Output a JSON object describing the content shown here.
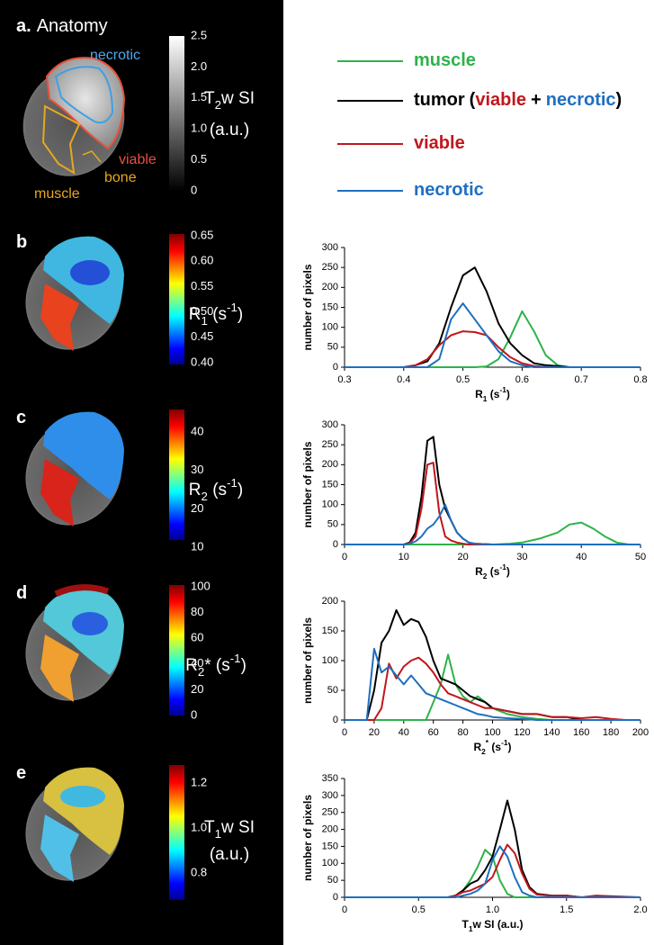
{
  "panels": [
    {
      "letter": "a.",
      "title": "Anatomy",
      "ticks": [
        "2.5",
        "2.0",
        "1.5",
        "1.0",
        "0.5",
        "0"
      ],
      "label": [
        [
          {
            "t": "T"
          },
          {
            "t": "2",
            "s": "sub"
          },
          {
            "t": "w SI"
          }
        ],
        [
          {
            "t": "(a.u.)"
          }
        ]
      ],
      "annotations": [
        "necrotic",
        "viable",
        "muscle",
        "bone"
      ]
    },
    {
      "letter": "b",
      "ticks": [
        "0.65",
        "0.60",
        "0.55",
        "0.50",
        "0.45",
        "0.40"
      ],
      "label": [
        [
          {
            "t": "R"
          },
          {
            "t": "1",
            "s": "sub"
          },
          {
            "t": " (s"
          },
          {
            "t": "-1",
            "s": "sup"
          },
          {
            "t": ")"
          }
        ]
      ]
    },
    {
      "letter": "c",
      "ticks": [
        "40",
        "30",
        "20",
        "10"
      ],
      "label": [
        [
          {
            "t": "R"
          },
          {
            "t": "2",
            "s": "sub"
          },
          {
            "t": " (s"
          },
          {
            "t": "-1",
            "s": "sup"
          },
          {
            "t": ")"
          }
        ]
      ]
    },
    {
      "letter": "d",
      "ticks": [
        "100",
        "80",
        "60",
        "40",
        "20",
        "0"
      ],
      "label": [
        [
          {
            "t": "R"
          },
          {
            "t": "2",
            "s": "sub"
          },
          {
            "t": "* (s"
          },
          {
            "t": "-1",
            "s": "sup"
          },
          {
            "t": ")"
          }
        ]
      ]
    },
    {
      "letter": "e",
      "ticks": [
        "1.2",
        "1.0",
        "0.8"
      ],
      "label": [
        [
          {
            "t": "T"
          },
          {
            "t": "1",
            "s": "sub"
          },
          {
            "t": "w SI"
          }
        ],
        [
          {
            "t": "(a.u.)"
          }
        ]
      ]
    }
  ],
  "legend_note": [
    "(",
    "viable",
    "+",
    "necrotic",
    ")"
  ],
  "chart_data": [
    {
      "type": "line",
      "ylabel": "number of pixels",
      "xlabel": [
        {
          "t": "R"
        },
        {
          "t": "1",
          "s": "sub"
        },
        {
          "t": " (s"
        },
        {
          "t": "-1",
          "s": "sup"
        },
        {
          "t": ")"
        }
      ],
      "x": [
        0.3,
        0.4,
        0.42,
        0.44,
        0.46,
        0.48,
        0.5,
        0.52,
        0.54,
        0.56,
        0.58,
        0.6,
        0.62,
        0.64,
        0.66,
        0.68,
        0.7,
        0.8
      ],
      "series": [
        {
          "name": "muscle",
          "color": "#2db34a",
          "values": [
            0,
            0,
            0,
            0,
            0,
            0,
            0,
            0,
            2,
            20,
            75,
            140,
            90,
            30,
            5,
            0,
            0,
            0
          ]
        },
        {
          "name": "tumor",
          "color": "#000000",
          "values": [
            0,
            0,
            5,
            15,
            60,
            150,
            230,
            250,
            190,
            110,
            60,
            30,
            10,
            5,
            3,
            0,
            0,
            0
          ]
        },
        {
          "name": "viable",
          "color": "#c0171d",
          "values": [
            0,
            0,
            5,
            20,
            55,
            80,
            90,
            88,
            80,
            50,
            25,
            10,
            3,
            1,
            0,
            0,
            0,
            0
          ]
        },
        {
          "name": "necrotic",
          "color": "#1f6fc0",
          "values": [
            0,
            0,
            0,
            0,
            20,
            120,
            160,
            120,
            80,
            40,
            15,
            5,
            0,
            0,
            0,
            0,
            0,
            0
          ]
        }
      ],
      "xlim": [
        0.3,
        0.8
      ],
      "xticks": [
        0.3,
        0.4,
        0.5,
        0.6,
        0.7,
        0.8
      ],
      "ylim": [
        0,
        300
      ],
      "yticks": [
        0,
        50,
        100,
        150,
        200,
        250,
        300
      ]
    },
    {
      "type": "line",
      "ylabel": "number of pixels",
      "xlabel": [
        {
          "t": "R"
        },
        {
          "t": "2",
          "s": "sub"
        },
        {
          "t": " (s"
        },
        {
          "t": "-1",
          "s": "sup"
        },
        {
          "t": ")"
        }
      ],
      "x": [
        0,
        10,
        11,
        12,
        13,
        14,
        15,
        16,
        17,
        18,
        19,
        20,
        21,
        22,
        25,
        28,
        30,
        33,
        36,
        38,
        40,
        42,
        44,
        46,
        48,
        50
      ],
      "series": [
        {
          "color": "#2db34a",
          "values": [
            0,
            0,
            0,
            0,
            0,
            0,
            0,
            0,
            0,
            0,
            0,
            0,
            0,
            0,
            0,
            2,
            5,
            15,
            30,
            50,
            55,
            40,
            20,
            5,
            0,
            0
          ]
        },
        {
          "color": "#000000",
          "values": [
            0,
            0,
            5,
            30,
            120,
            260,
            270,
            150,
            90,
            60,
            30,
            15,
            5,
            2,
            0,
            0,
            0,
            0,
            0,
            0,
            0,
            0,
            0,
            0,
            0,
            0
          ]
        },
        {
          "color": "#c0171d",
          "values": [
            0,
            0,
            3,
            20,
            90,
            200,
            205,
            80,
            20,
            10,
            5,
            2,
            0,
            0,
            0,
            0,
            0,
            0,
            0,
            0,
            0,
            0,
            0,
            0,
            0,
            0
          ]
        },
        {
          "color": "#1f6fc0",
          "values": [
            0,
            0,
            2,
            8,
            20,
            40,
            50,
            70,
            100,
            60,
            30,
            15,
            5,
            2,
            0,
            0,
            0,
            0,
            0,
            0,
            0,
            0,
            0,
            0,
            0,
            0
          ]
        }
      ],
      "xlim": [
        0,
        50
      ],
      "xticks": [
        0,
        10,
        20,
        30,
        40,
        50
      ],
      "ylim": [
        0,
        300
      ],
      "yticks": [
        0,
        50,
        100,
        150,
        200,
        250,
        300
      ]
    },
    {
      "type": "line",
      "ylabel": "number of pixels",
      "xlabel": [
        {
          "t": "R"
        },
        {
          "t": "2",
          "s": "sub"
        },
        {
          "t": "*",
          "s": "sup"
        },
        {
          "t": " (s"
        },
        {
          "t": "-1",
          "s": "sup"
        },
        {
          "t": ")"
        }
      ],
      "x": [
        0,
        15,
        20,
        25,
        30,
        35,
        40,
        45,
        50,
        55,
        60,
        65,
        70,
        75,
        80,
        85,
        90,
        95,
        100,
        110,
        120,
        130,
        140,
        150,
        160,
        170,
        180,
        190,
        200
      ],
      "series": [
        {
          "color": "#2db34a",
          "values": [
            0,
            0,
            0,
            0,
            0,
            0,
            0,
            0,
            0,
            0,
            30,
            60,
            110,
            60,
            40,
            30,
            40,
            30,
            20,
            10,
            5,
            2,
            0,
            0,
            0,
            0,
            0,
            0,
            0
          ]
        },
        {
          "color": "#000000",
          "values": [
            0,
            0,
            50,
            130,
            150,
            185,
            160,
            170,
            165,
            140,
            100,
            70,
            65,
            60,
            50,
            40,
            35,
            30,
            20,
            15,
            10,
            10,
            5,
            5,
            0,
            0,
            0,
            0,
            0
          ]
        },
        {
          "color": "#c0171d",
          "values": [
            0,
            0,
            0,
            20,
            95,
            70,
            90,
            100,
            105,
            95,
            80,
            60,
            45,
            40,
            35,
            30,
            25,
            20,
            20,
            15,
            10,
            10,
            5,
            5,
            3,
            5,
            2,
            0,
            0
          ]
        },
        {
          "color": "#1f6fc0",
          "values": [
            0,
            0,
            120,
            80,
            90,
            75,
            60,
            75,
            60,
            45,
            40,
            35,
            30,
            25,
            20,
            15,
            10,
            8,
            5,
            3,
            2,
            0,
            0,
            0,
            0,
            0,
            0,
            0,
            0
          ]
        }
      ],
      "xlim": [
        0,
        200
      ],
      "xticks": [
        0,
        20,
        40,
        60,
        80,
        100,
        120,
        140,
        160,
        180,
        200
      ],
      "ylim": [
        0,
        200
      ],
      "yticks": [
        0,
        50,
        100,
        150,
        200
      ]
    },
    {
      "type": "line",
      "ylabel": "number of pixels",
      "xlabel": [
        {
          "t": "T"
        },
        {
          "t": "1",
          "s": "sub"
        },
        {
          "t": "w SI (a.u.)"
        }
      ],
      "x": [
        0,
        0.7,
        0.75,
        0.8,
        0.85,
        0.9,
        0.95,
        1.0,
        1.05,
        1.1,
        1.15,
        1.2,
        1.25,
        1.3,
        1.4,
        1.5,
        1.6,
        1.7,
        2.0
      ],
      "series": [
        {
          "color": "#2db34a",
          "values": [
            0,
            0,
            5,
            20,
            50,
            90,
            140,
            120,
            50,
            10,
            0,
            0,
            0,
            0,
            0,
            0,
            0,
            0,
            0
          ]
        },
        {
          "color": "#000000",
          "values": [
            0,
            0,
            5,
            20,
            40,
            50,
            80,
            120,
            200,
            285,
            200,
            80,
            30,
            10,
            5,
            5,
            0,
            0,
            0
          ]
        },
        {
          "color": "#c0171d",
          "values": [
            0,
            0,
            5,
            15,
            20,
            30,
            40,
            60,
            110,
            155,
            130,
            70,
            25,
            8,
            4,
            5,
            0,
            5,
            0
          ]
        },
        {
          "color": "#1f6fc0",
          "values": [
            0,
            0,
            0,
            5,
            10,
            20,
            40,
            110,
            150,
            120,
            60,
            15,
            5,
            0,
            0,
            0,
            0,
            0,
            0
          ]
        }
      ],
      "xlim": [
        0,
        2
      ],
      "xticks": [
        0,
        0.5,
        {
          "value": 1,
          "label": "1.0"
        },
        1.5,
        {
          "value": 2,
          "label": "2.0"
        }
      ],
      "ylim": [
        0,
        350
      ],
      "yticks": [
        0,
        50,
        100,
        150,
        200,
        250,
        300,
        350
      ]
    }
  ]
}
